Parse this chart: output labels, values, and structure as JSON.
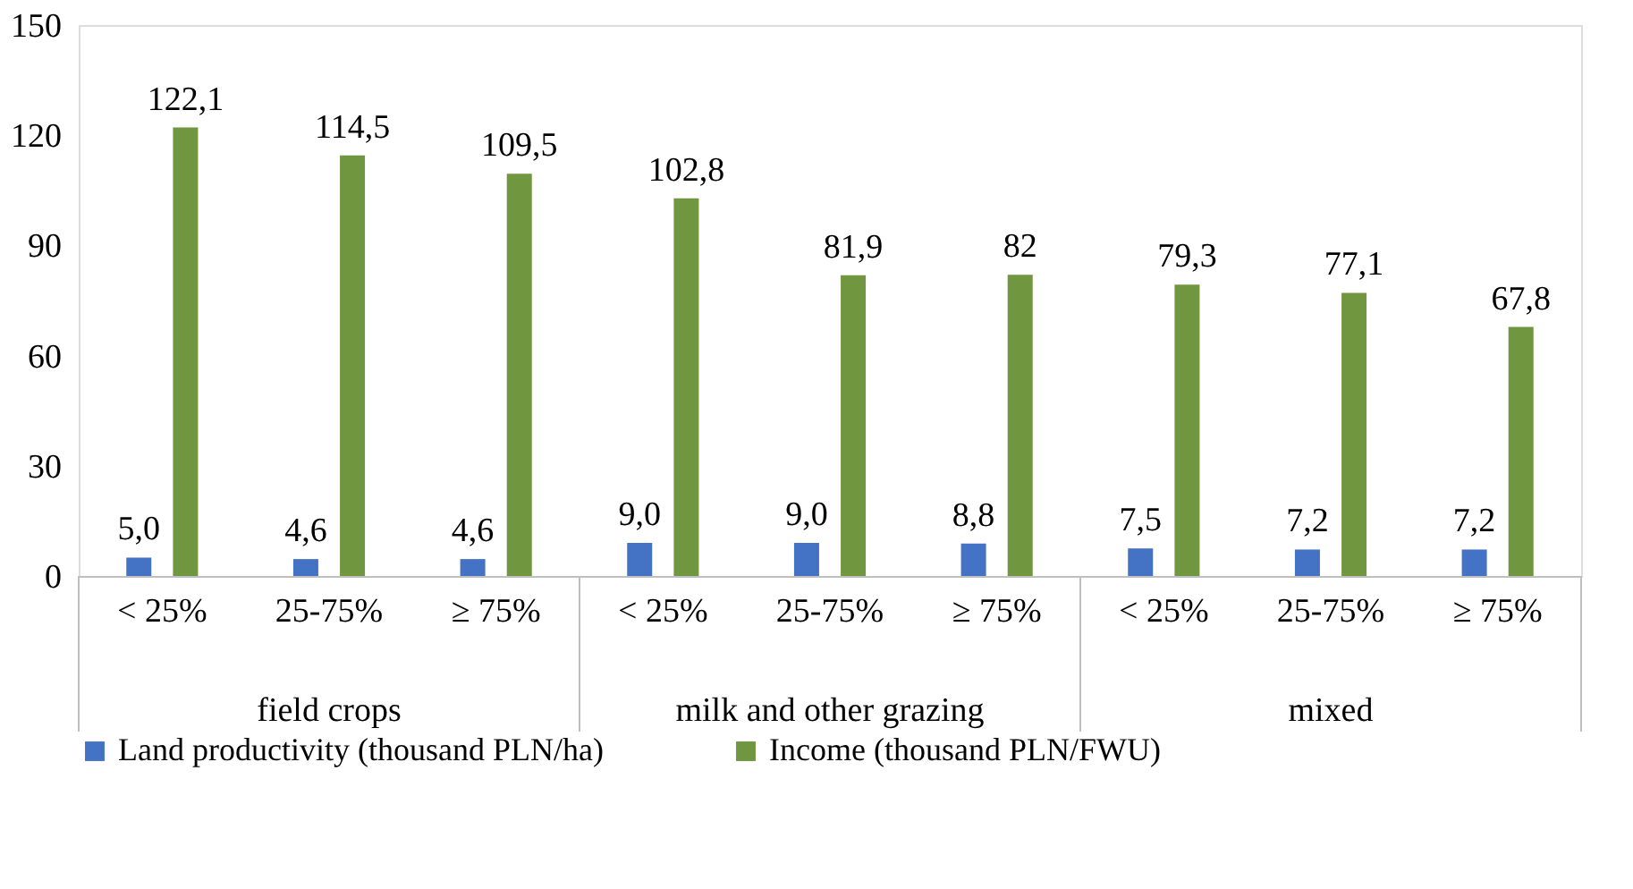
{
  "chart_data": {
    "type": "bar",
    "categories": [
      "< 25%",
      "25-75%",
      "≥ 75%",
      "< 25%",
      "25-75%",
      "≥ 75%",
      "< 25%",
      "25-75%",
      "≥ 75%"
    ],
    "series": [
      {
        "name": "Land productivity (thousand PLN/ha)",
        "color": "#4472c4",
        "values": [
          5.0,
          4.6,
          4.6,
          9.0,
          9.0,
          8.8,
          7.5,
          7.2,
          7.2
        ],
        "value_labels": [
          "5,0",
          "4,6",
          "4,6",
          "9,0",
          "9,0",
          "8,8",
          "7,5",
          "7,2",
          "7,2"
        ]
      },
      {
        "name": "Income (thousand PLN/FWU)",
        "color": "#70963f",
        "values": [
          122.1,
          114.5,
          109.5,
          102.8,
          81.9,
          82,
          79.3,
          77.1,
          67.8
        ],
        "value_labels": [
          "122,1",
          "114,5",
          "109,5",
          "102,8",
          "81,9",
          "82",
          "79,3",
          "77,1",
          "67,8"
        ]
      }
    ],
    "annotations": [
      "field crops",
      "milk and other grazing",
      "mixed"
    ],
    "ylim": [
      0,
      150
    ],
    "yticks": [
      0,
      30,
      60,
      90,
      120,
      150
    ],
    "grid": false,
    "legend": "bottom"
  }
}
